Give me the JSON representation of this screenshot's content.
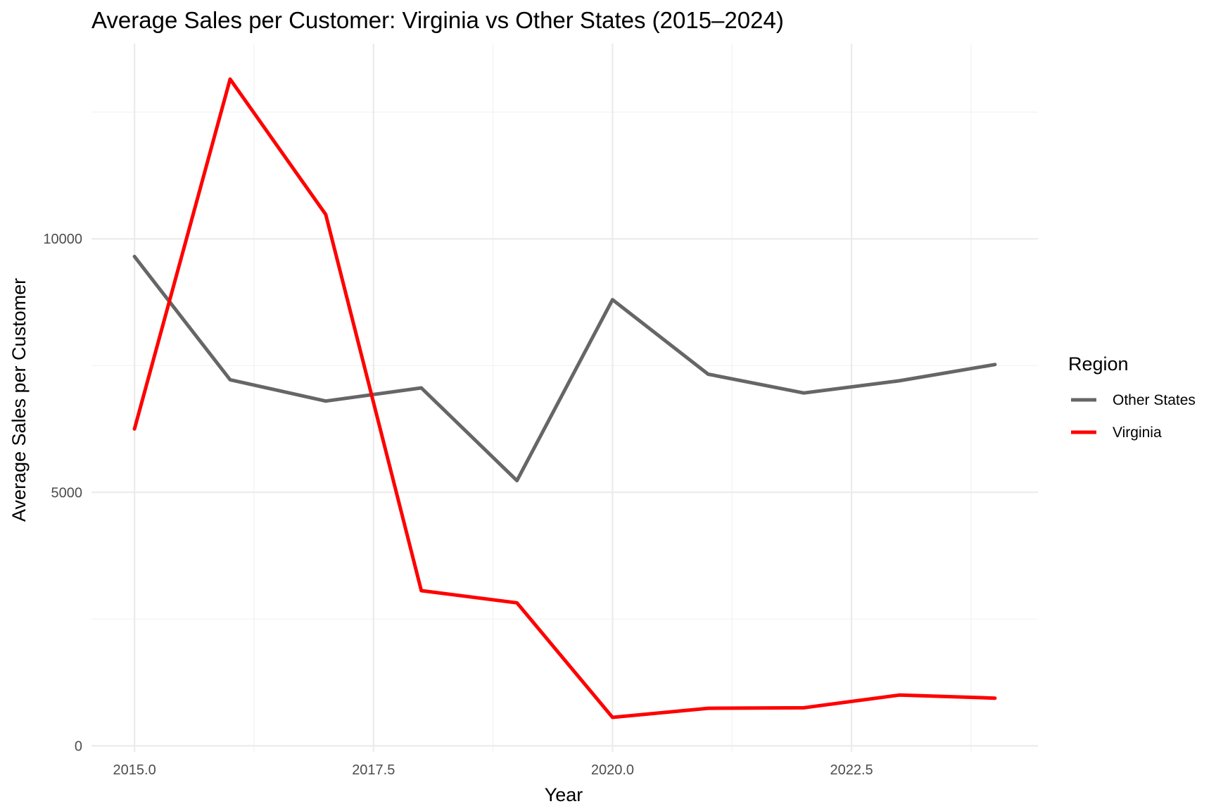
{
  "chart_data": {
    "type": "line",
    "title": "Average Sales per Customer: Virginia vs Other States (2015–2024)",
    "xlabel": "Year",
    "ylabel": "Average Sales per Customer",
    "xlim": [
      2014.55,
      2024.45
    ],
    "ylim": [
      -120,
      13850
    ],
    "x_ticks": [
      2015.0,
      2017.5,
      2020.0,
      2022.5
    ],
    "x_tick_labels": [
      "2015.0",
      "2017.5",
      "2020.0",
      "2022.5"
    ],
    "y_ticks": [
      0,
      5000,
      10000
    ],
    "y_tick_labels": [
      "0",
      "5000",
      "10000"
    ],
    "grid": true,
    "legend": {
      "title": "Region",
      "placement": "right"
    },
    "x": [
      2015,
      2016,
      2017,
      2018,
      2019,
      2020,
      2021,
      2022,
      2023,
      2024
    ],
    "series": [
      {
        "name": "Other States",
        "color": "#666666",
        "values": [
          9650,
          7220,
          6800,
          7060,
          5230,
          8800,
          7330,
          6960,
          7200,
          7520
        ]
      },
      {
        "name": "Virginia",
        "color": "#ff0000",
        "values": [
          6250,
          13150,
          10480,
          3060,
          2820,
          560,
          740,
          750,
          1000,
          940
        ]
      }
    ]
  }
}
